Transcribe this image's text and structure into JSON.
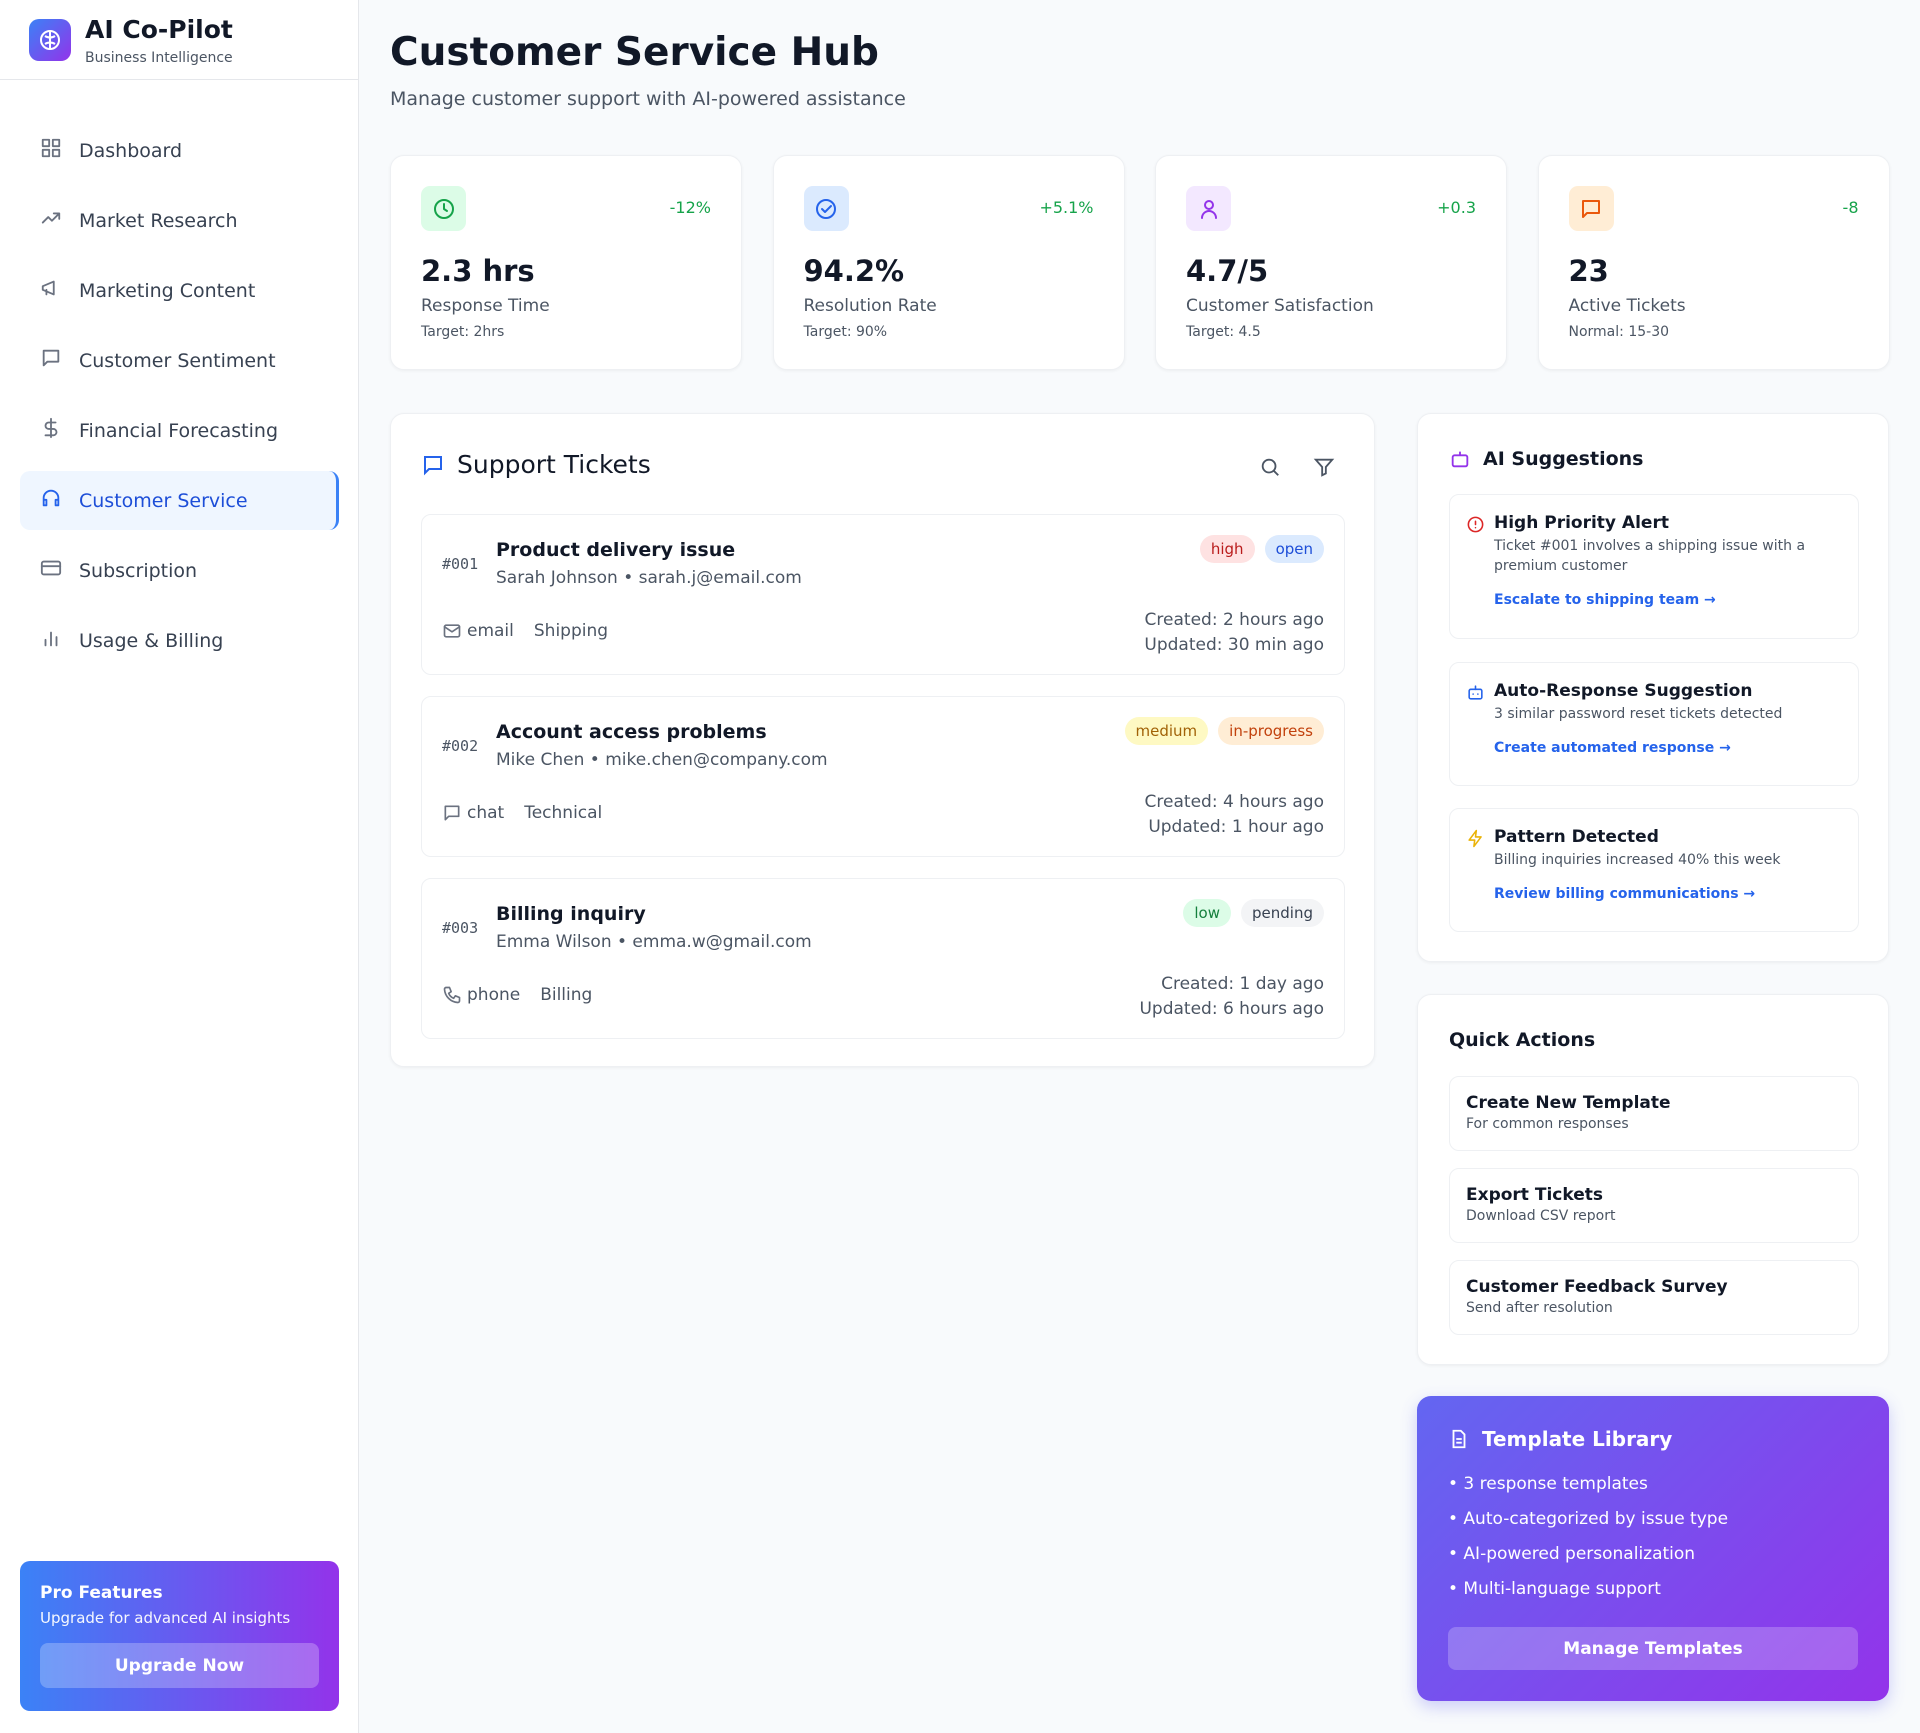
{
  "sidebar": {
    "brand": "AI Co-Pilot",
    "tagline": "Business Intelligence",
    "nav": [
      "Dashboard",
      "Market Research",
      "Marketing Content",
      "Customer Sentiment",
      "Financial Forecasting",
      "Customer Service",
      "Subscription",
      "Usage & Billing"
    ],
    "promo": {
      "title": "Pro Features",
      "text": "Upgrade for advanced AI insights",
      "button": "Upgrade Now"
    }
  },
  "header": {
    "title": "Customer Service Hub",
    "subtitle": "Manage customer support with AI-powered assistance"
  },
  "stats": [
    {
      "change": "-12%",
      "value": "2.3 hrs",
      "label": "Response Time",
      "note": "Target: 2hrs"
    },
    {
      "change": "+5.1%",
      "value": "94.2%",
      "label": "Resolution Rate",
      "note": "Target: 90%"
    },
    {
      "change": "+0.3",
      "value": "4.7/5",
      "label": "Customer Satisfaction",
      "note": "Target: 4.5"
    },
    {
      "change": "-8",
      "value": "23",
      "label": "Active Tickets",
      "note": "Normal: 15-30"
    }
  ],
  "tickets": {
    "title": "Support Tickets",
    "items": [
      {
        "id": "#001",
        "subject": "Product delivery issue",
        "contact": "Sarah Johnson • sarah.j@email.com",
        "priority": "high",
        "status": "open",
        "channel": "email",
        "category": "Shipping",
        "created": "Created: 2 hours ago",
        "updated": "Updated: 30 min ago"
      },
      {
        "id": "#002",
        "subject": "Account access problems",
        "contact": "Mike Chen • mike.chen@company.com",
        "priority": "medium",
        "status": "in-progress",
        "channel": "chat",
        "category": "Technical",
        "created": "Created: 4 hours ago",
        "updated": "Updated: 1 hour ago"
      },
      {
        "id": "#003",
        "subject": "Billing inquiry",
        "contact": "Emma Wilson • emma.w@gmail.com",
        "priority": "low",
        "status": "pending",
        "channel": "phone",
        "category": "Billing",
        "created": "Created: 1 day ago",
        "updated": "Updated: 6 hours ago"
      }
    ]
  },
  "ai_suggestions": {
    "title": "AI Suggestions",
    "items": [
      {
        "title": "High Priority Alert",
        "text": "Ticket #001 involves a shipping issue with a premium customer",
        "action": "Escalate to shipping team →"
      },
      {
        "title": "Auto-Response Suggestion",
        "text": "3 similar password reset tickets detected",
        "action": "Create automated response →"
      },
      {
        "title": "Pattern Detected",
        "text": "Billing inquiries increased 40% this week",
        "action": "Review billing communications →"
      }
    ]
  },
  "quick_actions": {
    "title": "Quick Actions",
    "items": [
      {
        "title": "Create New Template",
        "subtitle": "For common responses"
      },
      {
        "title": "Export Tickets",
        "subtitle": "Download CSV report"
      },
      {
        "title": "Customer Feedback Survey",
        "subtitle": "Send after resolution"
      }
    ]
  },
  "template_library": {
    "title": "Template Library",
    "features": [
      "• 3 response templates",
      "• Auto-categorized by issue type",
      "• AI-powered personalization",
      "• Multi-language support"
    ],
    "button": "Manage Templates"
  }
}
